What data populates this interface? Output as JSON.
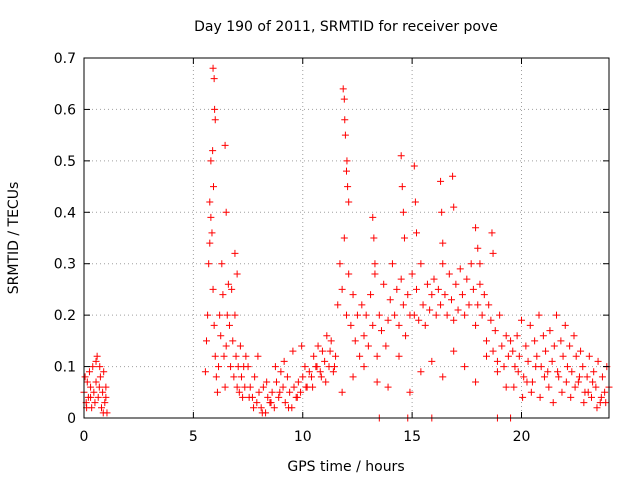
{
  "chart_data": {
    "type": "scatter",
    "title": "Day 190 of 2011, SRMTID for receiver pove",
    "xlabel": "GPS time / hours",
    "ylabel": "SRMTID / TECUs",
    "xlim": [
      0,
      24
    ],
    "ylim": [
      0,
      0.7
    ],
    "xticks": [
      0,
      5,
      10,
      15,
      20
    ],
    "yticks": [
      0,
      0.1,
      0.2,
      0.3,
      0.4,
      0.5,
      0.6,
      0.7
    ],
    "xtick_labels": [
      "0",
      "5",
      "10",
      "15",
      "20"
    ],
    "ytick_labels": [
      "0",
      "0.1",
      "0.2",
      "0.3",
      "0.4",
      "0.5",
      "0.6",
      "0.7"
    ],
    "grid": true,
    "marker": "plus",
    "color": "#ff0000",
    "series": [
      {
        "name": "SRMTID",
        "x": [
          0.0,
          0.05,
          0.1,
          0.15,
          0.2,
          0.25,
          0.3,
          0.35,
          0.4,
          0.45,
          0.5,
          0.55,
          0.6,
          0.65,
          0.7,
          0.75,
          0.8,
          0.85,
          0.9,
          0.95,
          1.0,
          1.05,
          0.12,
          0.3,
          0.55,
          0.72,
          0.88,
          1.0,
          5.55,
          5.6,
          5.65,
          5.7,
          5.75,
          5.8,
          5.85,
          5.9,
          5.95,
          6.0,
          6.05,
          6.1,
          6.15,
          6.2,
          6.25,
          6.3,
          6.35,
          6.4,
          6.45,
          6.5,
          6.55,
          6.6,
          6.65,
          6.7,
          6.75,
          6.8,
          6.85,
          6.9,
          6.95,
          7.0,
          7.05,
          7.1,
          7.15,
          7.2,
          7.25,
          7.3,
          7.35,
          7.4,
          5.9,
          5.95,
          5.97,
          6.0,
          5.88,
          5.92,
          5.8,
          5.75,
          6.45,
          6.5,
          6.9,
          7.0,
          7.5,
          7.6,
          7.7,
          7.8,
          7.9,
          8.0,
          8.1,
          8.2,
          8.3,
          8.4,
          8.5,
          8.6,
          8.7,
          8.8,
          8.9,
          9.0,
          9.1,
          9.2,
          9.3,
          9.4,
          9.5,
          9.6,
          9.7,
          9.8,
          9.9,
          10.0,
          10.1,
          10.2,
          10.3,
          7.55,
          7.75,
          7.95,
          8.15,
          8.35,
          8.55,
          8.75,
          8.95,
          9.15,
          9.35,
          9.55,
          9.75,
          9.95,
          10.15,
          10.4,
          10.5,
          10.6,
          10.7,
          10.8,
          10.9,
          11.0,
          11.1,
          11.2,
          11.3,
          11.4,
          11.5,
          10.45,
          10.65,
          10.85,
          11.05,
          11.25,
          11.45,
          11.6,
          11.7,
          11.8,
          11.9,
          12.0,
          12.1,
          12.2,
          12.3,
          12.4,
          12.5,
          12.6,
          12.7,
          12.8,
          12.9,
          13.0,
          13.1,
          13.2,
          13.3,
          13.4,
          13.5,
          13.6,
          13.7,
          13.8,
          13.9,
          14.0,
          14.1,
          14.2,
          14.3,
          14.4,
          14.5,
          14.6,
          14.7,
          14.8,
          14.9,
          15.0,
          15.1,
          15.2,
          15.3,
          15.4,
          15.5,
          15.6,
          15.7,
          15.8,
          15.9,
          16.0,
          16.1,
          16.2,
          16.3,
          16.4,
          16.5,
          16.6,
          16.7,
          16.8,
          16.9,
          17.0,
          17.1,
          17.2,
          17.3,
          17.4,
          17.5,
          17.6,
          17.7,
          17.8,
          17.9,
          18.0,
          18.1,
          18.2,
          18.3,
          18.4,
          18.5,
          18.6,
          18.7,
          18.8,
          18.9,
          19.0,
          19.1,
          19.2,
          19.3,
          19.4,
          19.5,
          11.85,
          11.9,
          11.95,
          12.0,
          12.05,
          12.1,
          11.92,
          12.02,
          13.2,
          13.25,
          13.3,
          14.5,
          14.55,
          14.6,
          14.65,
          15.1,
          15.15,
          15.2,
          16.3,
          16.35,
          16.4,
          16.85,
          16.9,
          17.9,
          18.0,
          18.1,
          18.65,
          18.7,
          11.8,
          12.3,
          12.8,
          13.4,
          13.9,
          14.4,
          14.9,
          15.4,
          15.9,
          16.4,
          16.9,
          17.4,
          17.9,
          18.4,
          18.9,
          19.3,
          19.6,
          19.7,
          19.8,
          19.9,
          20.0,
          20.1,
          20.2,
          20.3,
          20.4,
          20.5,
          20.6,
          20.7,
          20.8,
          20.9,
          21.0,
          21.1,
          21.2,
          21.3,
          21.4,
          21.5,
          21.6,
          21.7,
          21.8,
          21.9,
          22.0,
          22.1,
          22.2,
          22.3,
          22.4,
          22.5,
          22.6,
          22.7,
          22.8,
          22.9,
          23.0,
          23.1,
          23.2,
          23.3,
          23.4,
          23.5,
          23.6,
          23.7,
          23.8,
          23.9,
          24.0,
          19.65,
          19.85,
          20.05,
          20.25,
          20.45,
          20.65,
          20.85,
          21.05,
          21.25,
          21.45,
          21.65,
          21.85,
          22.05,
          22.25,
          22.45,
          22.65,
          22.85,
          23.05,
          23.25,
          23.45,
          23.65,
          23.85,
          13.5,
          14.8,
          15.9,
          18.9,
          19.5
        ],
        "y": [
          0.05,
          0.08,
          0.03,
          0.07,
          0.04,
          0.09,
          0.06,
          0.02,
          0.1,
          0.05,
          0.03,
          0.07,
          0.12,
          0.04,
          0.06,
          0.08,
          0.02,
          0.05,
          0.09,
          0.03,
          0.06,
          0.01,
          0.02,
          0.04,
          0.11,
          0.1,
          0.01,
          0.04,
          0.09,
          0.15,
          0.2,
          0.3,
          0.42,
          0.5,
          0.36,
          0.25,
          0.18,
          0.12,
          0.08,
          0.05,
          0.1,
          0.2,
          0.16,
          0.3,
          0.24,
          0.12,
          0.06,
          0.14,
          0.2,
          0.26,
          0.18,
          0.1,
          0.25,
          0.15,
          0.08,
          0.2,
          0.12,
          0.06,
          0.1,
          0.05,
          0.14,
          0.08,
          0.04,
          0.1,
          0.06,
          0.12,
          0.68,
          0.66,
          0.6,
          0.58,
          0.52,
          0.45,
          0.39,
          0.34,
          0.53,
          0.4,
          0.32,
          0.28,
          0.1,
          0.06,
          0.04,
          0.08,
          0.03,
          0.05,
          0.02,
          0.06,
          0.01,
          0.04,
          0.03,
          0.05,
          0.02,
          0.07,
          0.04,
          0.09,
          0.06,
          0.03,
          0.08,
          0.05,
          0.02,
          0.06,
          0.04,
          0.07,
          0.05,
          0.08,
          0.1,
          0.06,
          0.09,
          0.04,
          0.02,
          0.12,
          0.01,
          0.07,
          0.03,
          0.1,
          0.05,
          0.11,
          0.02,
          0.13,
          0.04,
          0.14,
          0.06,
          0.08,
          0.12,
          0.1,
          0.14,
          0.09,
          0.13,
          0.11,
          0.16,
          0.1,
          0.15,
          0.09,
          0.12,
          0.06,
          0.1,
          0.08,
          0.07,
          0.13,
          0.1,
          0.22,
          0.3,
          0.25,
          0.35,
          0.2,
          0.28,
          0.18,
          0.24,
          0.15,
          0.2,
          0.12,
          0.22,
          0.16,
          0.2,
          0.14,
          0.24,
          0.18,
          0.28,
          0.12,
          0.2,
          0.17,
          0.26,
          0.14,
          0.19,
          0.23,
          0.3,
          0.2,
          0.25,
          0.18,
          0.27,
          0.22,
          0.16,
          0.24,
          0.2,
          0.28,
          0.2,
          0.25,
          0.19,
          0.3,
          0.22,
          0.18,
          0.26,
          0.21,
          0.24,
          0.27,
          0.2,
          0.25,
          0.22,
          0.3,
          0.24,
          0.2,
          0.28,
          0.23,
          0.19,
          0.26,
          0.21,
          0.29,
          0.24,
          0.2,
          0.27,
          0.22,
          0.3,
          0.25,
          0.18,
          0.22,
          0.26,
          0.2,
          0.24,
          0.15,
          0.22,
          0.19,
          0.13,
          0.17,
          0.11,
          0.2,
          0.14,
          0.1,
          0.16,
          0.12,
          0.15,
          0.64,
          0.62,
          0.55,
          0.48,
          0.45,
          0.42,
          0.58,
          0.5,
          0.39,
          0.35,
          0.3,
          0.51,
          0.45,
          0.4,
          0.35,
          0.49,
          0.42,
          0.36,
          0.46,
          0.4,
          0.34,
          0.47,
          0.41,
          0.37,
          0.33,
          0.3,
          0.36,
          0.32,
          0.05,
          0.08,
          0.1,
          0.07,
          0.06,
          0.12,
          0.05,
          0.09,
          0.11,
          0.08,
          0.13,
          0.1,
          0.07,
          0.12,
          0.09,
          0.06,
          0.13,
          0.1,
          0.16,
          0.12,
          0.19,
          0.08,
          0.14,
          0.11,
          0.18,
          0.07,
          0.15,
          0.12,
          0.2,
          0.1,
          0.16,
          0.13,
          0.09,
          0.17,
          0.11,
          0.14,
          0.2,
          0.08,
          0.15,
          0.12,
          0.18,
          0.1,
          0.14,
          0.09,
          0.16,
          0.12,
          0.07,
          0.13,
          0.1,
          0.05,
          0.08,
          0.12,
          0.04,
          0.09,
          0.06,
          0.11,
          0.03,
          0.08,
          0.05,
          0.1,
          0.06,
          0.06,
          0.09,
          0.04,
          0.07,
          0.05,
          0.1,
          0.04,
          0.08,
          0.06,
          0.03,
          0.09,
          0.05,
          0.07,
          0.04,
          0.06,
          0.08,
          0.03,
          0.05,
          0.07,
          0.02,
          0.04,
          0.03,
          0.0,
          0.0,
          0.0,
          0.0,
          0.0
        ]
      }
    ]
  }
}
